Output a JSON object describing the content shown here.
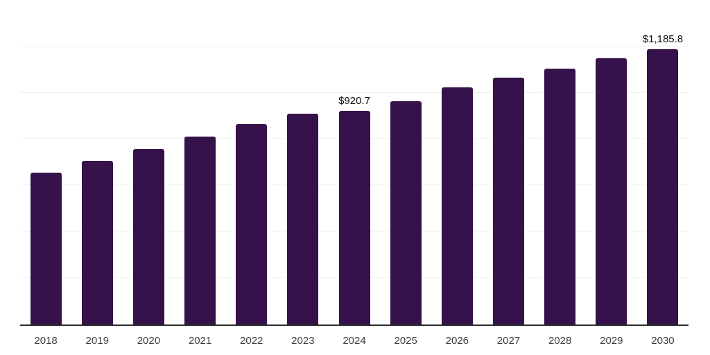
{
  "chart_data": {
    "type": "bar",
    "title": "",
    "xlabel": "",
    "ylabel": "",
    "categories": [
      "2018",
      "2019",
      "2020",
      "2021",
      "2022",
      "2023",
      "2024",
      "2025",
      "2026",
      "2027",
      "2028",
      "2029",
      "2030"
    ],
    "values": [
      656,
      706,
      757,
      809,
      863,
      908,
      920.7,
      964,
      1021,
      1065,
      1103,
      1148,
      1185.8
    ],
    "ylim": [
      0,
      1400
    ],
    "grid": true,
    "grid_step": 200,
    "y_tick_labels_visible": false,
    "legend": "none",
    "data_labels": [
      {
        "category": "2024",
        "text": "$920.7"
      },
      {
        "category": "2030",
        "text": "$1,185.8"
      }
    ],
    "colors": {
      "bar": "#351249",
      "gridline": "#f2f2f2",
      "axis_line": "#2b2b2b",
      "tick_label": "#3d3d3d",
      "data_label": "#0d0d0d",
      "background": "#ffffff"
    }
  }
}
